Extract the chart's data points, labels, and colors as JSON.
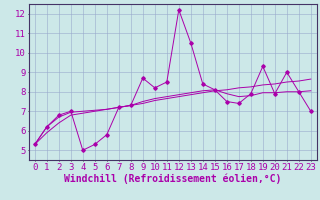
{
  "x_values": [
    0,
    1,
    2,
    3,
    4,
    5,
    6,
    7,
    8,
    9,
    10,
    11,
    12,
    13,
    14,
    15,
    16,
    17,
    18,
    19,
    20,
    21,
    22,
    23
  ],
  "line1_y": [
    5.3,
    6.2,
    6.8,
    7.0,
    5.0,
    5.3,
    5.8,
    7.2,
    7.3,
    8.7,
    8.2,
    8.5,
    12.2,
    10.5,
    8.4,
    8.1,
    7.5,
    7.4,
    7.9,
    9.3,
    7.9,
    9.0,
    8.0,
    7.0
  ],
  "line2_y": [
    5.3,
    6.2,
    6.7,
    6.95,
    7.0,
    7.05,
    7.1,
    7.2,
    7.3,
    7.5,
    7.65,
    7.75,
    7.85,
    7.95,
    8.05,
    8.1,
    7.9,
    7.75,
    7.8,
    7.95,
    7.95,
    8.0,
    8.0,
    8.05
  ],
  "line3_y": [
    5.3,
    5.9,
    6.4,
    6.8,
    6.9,
    7.0,
    7.1,
    7.2,
    7.3,
    7.4,
    7.55,
    7.65,
    7.75,
    7.85,
    7.95,
    8.05,
    8.1,
    8.2,
    8.25,
    8.35,
    8.4,
    8.5,
    8.55,
    8.65
  ],
  "line_color": "#aa00aa",
  "bg_color": "#cce8e8",
  "grid_color": "#99aacc",
  "xlabel": "Windchill (Refroidissement éolien,°C)",
  "xlim": [
    -0.5,
    23.5
  ],
  "ylim": [
    4.5,
    12.5
  ],
  "xticks": [
    0,
    1,
    2,
    3,
    4,
    5,
    6,
    7,
    8,
    9,
    10,
    11,
    12,
    13,
    14,
    15,
    16,
    17,
    18,
    19,
    20,
    21,
    22,
    23
  ],
  "yticks": [
    5,
    6,
    7,
    8,
    9,
    10,
    11,
    12
  ],
  "tick_fontsize": 6.5,
  "xlabel_fontsize": 7.0
}
